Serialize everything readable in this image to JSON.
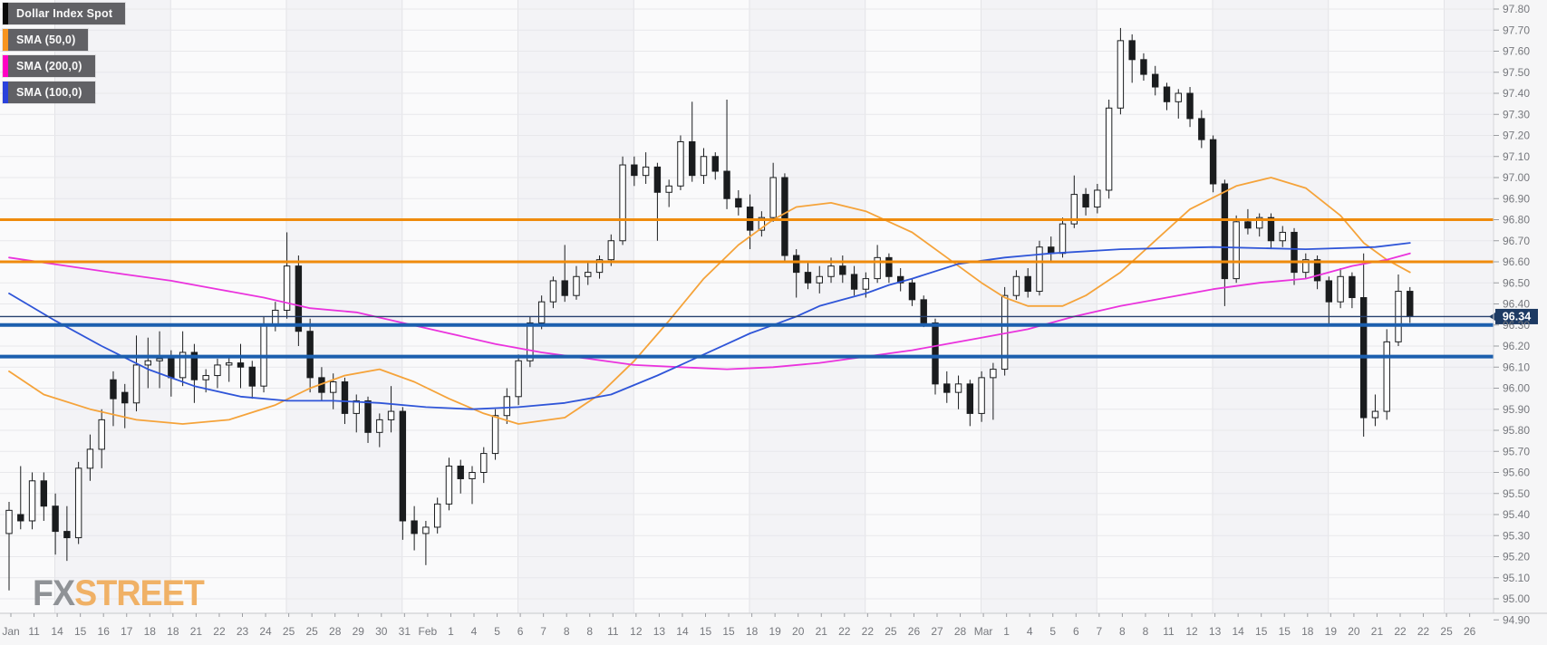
{
  "app": {
    "watermark_fx": "FX",
    "watermark_street": "STREET"
  },
  "legend": {
    "items": [
      {
        "name": "instrument",
        "label": "Dollar Index Spot",
        "accent": "#0a0a0a"
      },
      {
        "name": "sma-50",
        "label": "SMA (50,0)",
        "accent": "#f7941e"
      },
      {
        "name": "sma-200",
        "label": "SMA (200,0)",
        "accent": "#ff00c4"
      },
      {
        "name": "sma-100",
        "label": "SMA (100,0)",
        "accent": "#2a41dc"
      }
    ]
  },
  "chart_data": {
    "type": "candlestick",
    "title": "Dollar Index Spot",
    "timeframe": "12h",
    "grid": true,
    "y_axis": {
      "side": "right",
      "min": 94.9,
      "max": 97.8,
      "step": 0.1,
      "labels": [
        "97.80",
        "97.70",
        "97.60",
        "97.50",
        "97.40",
        "97.30",
        "97.20",
        "97.10",
        "97.00",
        "96.90",
        "96.80",
        "96.70",
        "96.60",
        "96.50",
        "96.40",
        "96.30",
        "96.20",
        "96.10",
        "96.00",
        "95.90",
        "95.80",
        "95.70",
        "95.60",
        "95.50",
        "95.40",
        "95.30",
        "95.20",
        "95.10",
        "95.00",
        "94.90"
      ]
    },
    "x_labels": [
      "Jan",
      "11",
      "14",
      "15",
      "16",
      "17",
      "18",
      "18",
      "21",
      "22",
      "23",
      "24",
      "25",
      "25",
      "28",
      "29",
      "30",
      "31",
      "Feb",
      "1",
      "4",
      "5",
      "6",
      "7",
      "8",
      "8",
      "11",
      "12",
      "13",
      "14",
      "15",
      "15",
      "18",
      "19",
      "20",
      "21",
      "22",
      "22",
      "25",
      "26",
      "27",
      "28",
      "Mar",
      "1",
      "4",
      "5",
      "6",
      "7",
      "8",
      "8",
      "11",
      "12",
      "13",
      "14",
      "15",
      "15",
      "18",
      "19",
      "20",
      "21",
      "22",
      "22",
      "25",
      "26"
    ],
    "x_label_every_n_candles": 2,
    "current_price": {
      "value": "96.34",
      "raw": 96.34,
      "tag_color": "#1d3a63",
      "line_color": "#27416f"
    },
    "horizontal_levels": [
      {
        "price": 96.8,
        "color": "#ef8b0c",
        "width": 3
      },
      {
        "price": 96.6,
        "color": "#ef8b0c",
        "width": 3
      },
      {
        "price": 96.3,
        "color": "#1c5fae",
        "width": 4
      },
      {
        "price": 96.15,
        "color": "#1c5fae",
        "width": 4
      }
    ],
    "candles_format": [
      "open",
      "high",
      "low",
      "close"
    ],
    "candles": [
      [
        95.31,
        95.46,
        95.04,
        95.42
      ],
      [
        95.4,
        95.63,
        95.33,
        95.37
      ],
      [
        95.37,
        95.6,
        95.33,
        95.56
      ],
      [
        95.56,
        95.6,
        95.37,
        95.44
      ],
      [
        95.44,
        95.5,
        95.21,
        95.32
      ],
      [
        95.32,
        95.44,
        95.18,
        95.29
      ],
      [
        95.29,
        95.65,
        95.26,
        95.62
      ],
      [
        95.62,
        95.78,
        95.56,
        95.71
      ],
      [
        95.71,
        95.9,
        95.62,
        95.85
      ],
      [
        96.04,
        96.08,
        95.82,
        95.95
      ],
      [
        95.98,
        96.02,
        95.81,
        95.93
      ],
      [
        95.93,
        96.25,
        95.89,
        96.11
      ],
      [
        96.11,
        96.24,
        96.0,
        96.13
      ],
      [
        96.13,
        96.27,
        96.0,
        96.14
      ],
      [
        96.14,
        96.18,
        95.96,
        96.05
      ],
      [
        96.05,
        96.27,
        96.01,
        96.17
      ],
      [
        96.17,
        96.21,
        95.93,
        96.04
      ],
      [
        96.04,
        96.09,
        95.98,
        96.06
      ],
      [
        96.06,
        96.14,
        96.0,
        96.11
      ],
      [
        96.11,
        96.15,
        96.03,
        96.12
      ],
      [
        96.12,
        96.21,
        96.0,
        96.1
      ],
      [
        96.1,
        96.13,
        95.95,
        96.01
      ],
      [
        96.01,
        96.34,
        95.98,
        96.3
      ],
      [
        96.3,
        96.41,
        96.27,
        96.37
      ],
      [
        96.37,
        96.74,
        96.33,
        96.58
      ],
      [
        96.58,
        96.63,
        96.2,
        96.27
      ],
      [
        96.27,
        96.33,
        95.98,
        96.05
      ],
      [
        96.05,
        96.1,
        95.94,
        95.98
      ],
      [
        95.98,
        96.07,
        95.9,
        96.03
      ],
      [
        96.03,
        96.05,
        95.83,
        95.88
      ],
      [
        95.88,
        95.97,
        95.79,
        95.94
      ],
      [
        95.94,
        95.96,
        95.74,
        95.79
      ],
      [
        95.79,
        95.88,
        95.72,
        95.85
      ],
      [
        95.85,
        96.01,
        95.79,
        95.89
      ],
      [
        95.89,
        95.91,
        95.28,
        95.37
      ],
      [
        95.37,
        95.44,
        95.23,
        95.31
      ],
      [
        95.31,
        95.37,
        95.16,
        95.34
      ],
      [
        95.34,
        95.48,
        95.31,
        95.45
      ],
      [
        95.45,
        95.67,
        95.42,
        95.63
      ],
      [
        95.63,
        95.66,
        95.5,
        95.57
      ],
      [
        95.57,
        95.63,
        95.45,
        95.6
      ],
      [
        95.6,
        95.72,
        95.55,
        95.69
      ],
      [
        95.69,
        95.9,
        95.66,
        95.87
      ],
      [
        95.87,
        96.0,
        95.83,
        95.96
      ],
      [
        95.96,
        96.16,
        95.92,
        96.13
      ],
      [
        96.13,
        96.34,
        96.1,
        96.31
      ],
      [
        96.31,
        96.44,
        96.28,
        96.41
      ],
      [
        96.41,
        96.53,
        96.38,
        96.51
      ],
      [
        96.51,
        96.68,
        96.41,
        96.44
      ],
      [
        96.44,
        96.58,
        96.42,
        96.53
      ],
      [
        96.53,
        96.6,
        96.49,
        96.55
      ],
      [
        96.55,
        96.63,
        96.52,
        96.61
      ],
      [
        96.61,
        96.73,
        96.58,
        96.7
      ],
      [
        96.7,
        97.1,
        96.68,
        97.06
      ],
      [
        97.06,
        97.1,
        96.96,
        97.01
      ],
      [
        97.01,
        97.12,
        96.97,
        97.05
      ],
      [
        97.05,
        97.07,
        96.7,
        96.93
      ],
      [
        96.93,
        96.99,
        96.86,
        96.96
      ],
      [
        96.96,
        97.2,
        96.94,
        97.17
      ],
      [
        97.17,
        97.36,
        96.98,
        97.01
      ],
      [
        97.01,
        97.14,
        96.97,
        97.1
      ],
      [
        97.1,
        97.12,
        96.99,
        97.03
      ],
      [
        97.03,
        97.37,
        96.85,
        96.9
      ],
      [
        96.9,
        96.94,
        96.82,
        96.86
      ],
      [
        96.86,
        96.92,
        96.66,
        96.75
      ],
      [
        96.75,
        96.84,
        96.72,
        96.81
      ],
      [
        96.81,
        97.07,
        96.79,
        97.0
      ],
      [
        97.0,
        97.02,
        96.6,
        96.63
      ],
      [
        96.63,
        96.66,
        96.43,
        96.55
      ],
      [
        96.55,
        96.6,
        96.47,
        96.5
      ],
      [
        96.5,
        96.58,
        96.45,
        96.53
      ],
      [
        96.53,
        96.62,
        96.5,
        96.58
      ],
      [
        96.58,
        96.63,
        96.5,
        96.54
      ],
      [
        96.54,
        96.58,
        96.44,
        96.47
      ],
      [
        96.47,
        96.55,
        96.43,
        96.52
      ],
      [
        96.52,
        96.68,
        96.5,
        96.62
      ],
      [
        96.62,
        96.64,
        96.5,
        96.53
      ],
      [
        96.53,
        96.57,
        96.46,
        96.5
      ],
      [
        96.5,
        96.52,
        96.39,
        96.42
      ],
      [
        96.42,
        96.44,
        96.29,
        96.31
      ],
      [
        96.31,
        96.33,
        95.97,
        96.02
      ],
      [
        96.02,
        96.08,
        95.93,
        95.98
      ],
      [
        95.98,
        96.06,
        95.9,
        96.02
      ],
      [
        96.02,
        96.04,
        95.82,
        95.88
      ],
      [
        95.88,
        96.08,
        95.84,
        96.05
      ],
      [
        96.05,
        96.12,
        95.85,
        96.09
      ],
      [
        96.09,
        96.48,
        96.06,
        96.44
      ],
      [
        96.44,
        96.56,
        96.42,
        96.53
      ],
      [
        96.53,
        96.57,
        96.43,
        96.46
      ],
      [
        96.46,
        96.7,
        96.44,
        96.67
      ],
      [
        96.67,
        96.72,
        96.6,
        96.64
      ],
      [
        96.64,
        96.81,
        96.62,
        96.78
      ],
      [
        96.78,
        97.01,
        96.76,
        96.92
      ],
      [
        96.92,
        96.95,
        96.82,
        96.86
      ],
      [
        96.86,
        96.97,
        96.83,
        96.94
      ],
      [
        96.94,
        97.37,
        96.9,
        97.33
      ],
      [
        97.33,
        97.71,
        97.3,
        97.65
      ],
      [
        97.65,
        97.68,
        97.45,
        97.56
      ],
      [
        97.56,
        97.59,
        97.46,
        97.49
      ],
      [
        97.49,
        97.53,
        97.39,
        97.43
      ],
      [
        97.43,
        97.45,
        97.32,
        97.36
      ],
      [
        97.36,
        97.42,
        97.28,
        97.4
      ],
      [
        97.4,
        97.43,
        97.24,
        97.28
      ],
      [
        97.28,
        97.32,
        97.14,
        97.18
      ],
      [
        97.18,
        97.2,
        96.93,
        96.97
      ],
      [
        96.97,
        96.99,
        96.39,
        96.52
      ],
      [
        96.52,
        96.82,
        96.5,
        96.79
      ],
      [
        96.79,
        96.85,
        96.73,
        96.76
      ],
      [
        96.76,
        96.83,
        96.72,
        96.81
      ],
      [
        96.81,
        96.83,
        96.66,
        96.7
      ],
      [
        96.7,
        96.77,
        96.67,
        96.74
      ],
      [
        96.74,
        96.76,
        96.49,
        96.55
      ],
      [
        96.55,
        96.64,
        96.52,
        96.61
      ],
      [
        96.61,
        96.63,
        96.47,
        96.51
      ],
      [
        96.51,
        96.53,
        96.3,
        96.41
      ],
      [
        96.41,
        96.57,
        96.38,
        96.53
      ],
      [
        96.53,
        96.55,
        96.38,
        96.43
      ],
      [
        96.43,
        96.64,
        95.77,
        95.86
      ],
      [
        95.86,
        95.97,
        95.82,
        95.89
      ],
      [
        95.89,
        96.28,
        95.85,
        96.22
      ],
      [
        96.22,
        96.54,
        96.2,
        96.46
      ],
      [
        96.46,
        96.48,
        96.31,
        96.34
      ]
    ],
    "overlays": [
      {
        "name": "SMA (50,0)",
        "color": "#f5a33a",
        "points": [
          [
            0,
            96.08
          ],
          [
            3,
            95.97
          ],
          [
            7,
            95.9
          ],
          [
            11,
            95.85
          ],
          [
            15,
            95.83
          ],
          [
            19,
            95.85
          ],
          [
            23,
            95.92
          ],
          [
            26,
            96.0
          ],
          [
            29,
            96.06
          ],
          [
            32,
            96.09
          ],
          [
            35,
            96.03
          ],
          [
            38,
            95.95
          ],
          [
            41,
            95.88
          ],
          [
            44,
            95.83
          ],
          [
            48,
            95.86
          ],
          [
            51,
            95.97
          ],
          [
            54,
            96.13
          ],
          [
            57,
            96.32
          ],
          [
            60,
            96.52
          ],
          [
            63,
            96.68
          ],
          [
            66,
            96.8
          ],
          [
            68,
            96.86
          ],
          [
            71,
            96.88
          ],
          [
            74,
            96.84
          ],
          [
            78,
            96.74
          ],
          [
            81,
            96.62
          ],
          [
            84,
            96.5
          ],
          [
            86,
            96.43
          ],
          [
            88,
            96.39
          ],
          [
            91,
            96.39
          ],
          [
            93,
            96.44
          ],
          [
            96,
            96.55
          ],
          [
            99,
            96.7
          ],
          [
            102,
            96.85
          ],
          [
            106,
            96.96
          ],
          [
            109,
            97.0
          ],
          [
            112,
            96.95
          ],
          [
            115,
            96.82
          ],
          [
            117,
            96.69
          ],
          [
            119,
            96.61
          ],
          [
            121,
            96.55
          ]
        ]
      },
      {
        "name": "SMA (200,0)",
        "color": "#ea33dd",
        "points": [
          [
            0,
            96.62
          ],
          [
            5,
            96.58
          ],
          [
            10,
            96.54
          ],
          [
            14,
            96.51
          ],
          [
            18,
            96.47
          ],
          [
            22,
            96.43
          ],
          [
            26,
            96.38
          ],
          [
            30,
            96.36
          ],
          [
            34,
            96.31
          ],
          [
            38,
            96.26
          ],
          [
            42,
            96.21
          ],
          [
            46,
            96.17
          ],
          [
            50,
            96.14
          ],
          [
            54,
            96.11
          ],
          [
            58,
            96.1
          ],
          [
            62,
            96.09
          ],
          [
            66,
            96.1
          ],
          [
            70,
            96.12
          ],
          [
            74,
            96.15
          ],
          [
            78,
            96.18
          ],
          [
            80,
            96.2
          ],
          [
            84,
            96.24
          ],
          [
            88,
            96.28
          ],
          [
            92,
            96.34
          ],
          [
            96,
            96.39
          ],
          [
            100,
            96.43
          ],
          [
            104,
            96.47
          ],
          [
            108,
            96.5
          ],
          [
            112,
            96.52
          ],
          [
            116,
            96.58
          ],
          [
            119,
            96.61
          ],
          [
            121,
            96.64
          ]
        ]
      },
      {
        "name": "SMA (100,0)",
        "color": "#2f55d8",
        "points": [
          [
            0,
            96.45
          ],
          [
            4,
            96.32
          ],
          [
            8,
            96.2
          ],
          [
            12,
            96.09
          ],
          [
            16,
            96.01
          ],
          [
            20,
            95.96
          ],
          [
            24,
            95.94
          ],
          [
            28,
            95.94
          ],
          [
            32,
            95.93
          ],
          [
            36,
            95.91
          ],
          [
            40,
            95.9
          ],
          [
            44,
            95.91
          ],
          [
            48,
            95.93
          ],
          [
            52,
            95.97
          ],
          [
            56,
            96.06
          ],
          [
            58,
            96.11
          ],
          [
            60,
            96.16
          ],
          [
            62,
            96.21
          ],
          [
            64,
            96.26
          ],
          [
            66,
            96.3
          ],
          [
            68,
            96.34
          ],
          [
            70,
            96.39
          ],
          [
            72,
            96.42
          ],
          [
            74,
            96.45
          ],
          [
            76,
            96.49
          ],
          [
            78,
            96.52
          ],
          [
            82,
            96.59
          ],
          [
            86,
            96.62
          ],
          [
            90,
            96.64
          ],
          [
            96,
            96.66
          ],
          [
            104,
            96.67
          ],
          [
            112,
            96.66
          ],
          [
            118,
            96.67
          ],
          [
            121,
            96.69
          ]
        ]
      }
    ],
    "high": 97.71,
    "low": 95.04
  },
  "colors": {
    "plot_band_dark": "#f3f3f6",
    "plot_band_light": "#fafafb",
    "grid": "#e8e8eb",
    "vgrid": "#e3e3e7",
    "candle_up_fill": "#ffffff",
    "candle_down_fill": "#1a1c1e",
    "candle_stroke": "#1a1c1e",
    "axis_text": "#76787d",
    "axis_line": "#c7c8cb",
    "tick": "#9b9da1"
  }
}
